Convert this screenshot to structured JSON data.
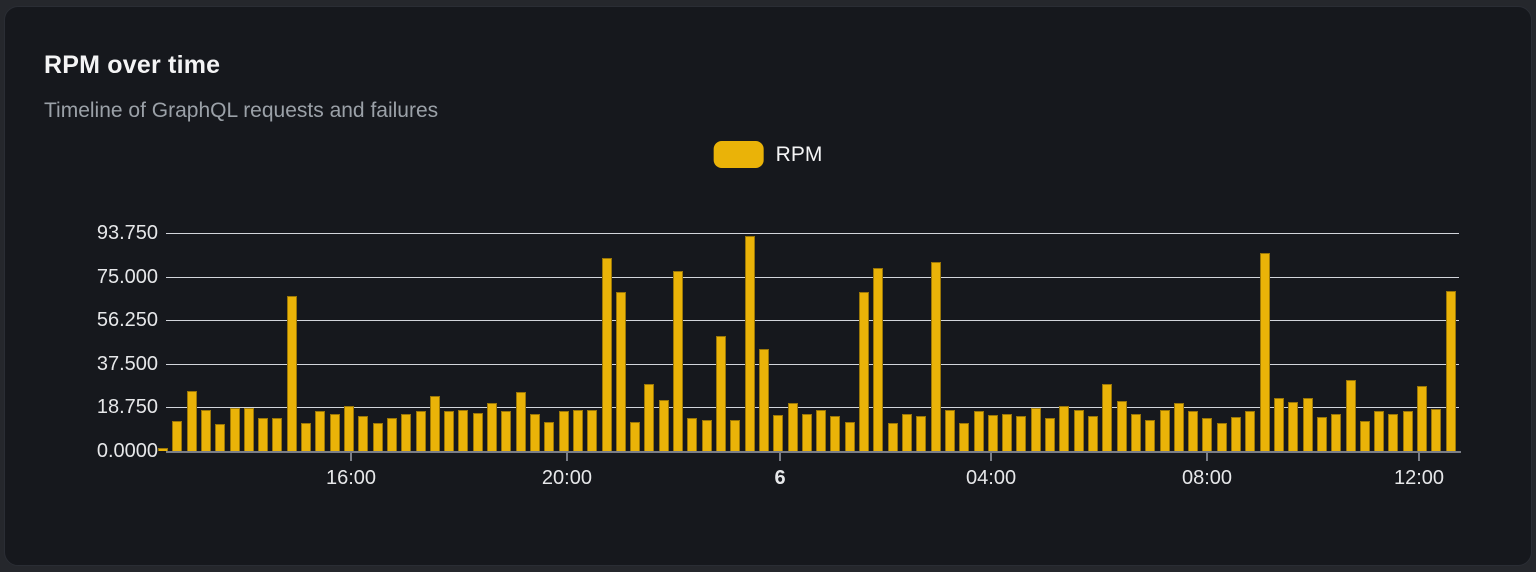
{
  "card": {
    "title": "RPM over time",
    "subtitle": "Timeline of GraphQL requests and failures"
  },
  "legend": {
    "label": "RPM"
  },
  "colors": {
    "bar": "#eab308",
    "card_bg": "#16181d",
    "page_bg": "#25272c",
    "grid": "#e3e6ec",
    "axis": "#7a7e87",
    "title": "#f4f4f5",
    "subtitle": "#9ba1a8"
  },
  "chart_data": {
    "type": "bar",
    "title": "RPM over time",
    "subtitle": "Timeline of GraphQL requests and failures",
    "series_name": "RPM",
    "legend_position": "top-center",
    "grid": true,
    "ylim": [
      0,
      93.75
    ],
    "y_ticks": [
      "0.0000",
      "18.750",
      "37.500",
      "56.250",
      "75.000",
      "93.750"
    ],
    "y_tick_values": [
      0,
      18.75,
      37.5,
      56.25,
      75,
      93.75
    ],
    "x_ticks": [
      {
        "label": "16:00",
        "pos_pct": 14.31,
        "emphasis": false
      },
      {
        "label": "20:00",
        "pos_pct": 31.01,
        "emphasis": false
      },
      {
        "label": "6",
        "pos_pct": 47.49,
        "emphasis": true
      },
      {
        "label": "04:00",
        "pos_pct": 63.81,
        "emphasis": false
      },
      {
        "label": "08:00",
        "pos_pct": 80.51,
        "emphasis": false
      },
      {
        "label": "12:00",
        "pos_pct": 96.91,
        "emphasis": false
      }
    ],
    "values": [
      1.5,
      13,
      26,
      17.5,
      11.5,
      18.5,
      18.5,
      14,
      14,
      66.5,
      12,
      17,
      16,
      19.5,
      15,
      12,
      14,
      16,
      17,
      23.5,
      17,
      17.5,
      16.5,
      20.5,
      17,
      25.5,
      16,
      12.5,
      17,
      17.5,
      17.5,
      83,
      68.5,
      12.5,
      29,
      22,
      77.5,
      14,
      13.5,
      49.5,
      13.5,
      92.5,
      44,
      15.5,
      20.5,
      16,
      17.5,
      15,
      12.5,
      68.5,
      78.5,
      12,
      16,
      15,
      81.5,
      17.5,
      12,
      17,
      15.5,
      16,
      15,
      18.5,
      14,
      19.5,
      17.5,
      15,
      29,
      21.5,
      16,
      13.5,
      17.5,
      20.5,
      17,
      14,
      12,
      14.5,
      17,
      85,
      23,
      21,
      23,
      14.5,
      16,
      30.5,
      13,
      17,
      16,
      17,
      28,
      18,
      69
    ]
  }
}
